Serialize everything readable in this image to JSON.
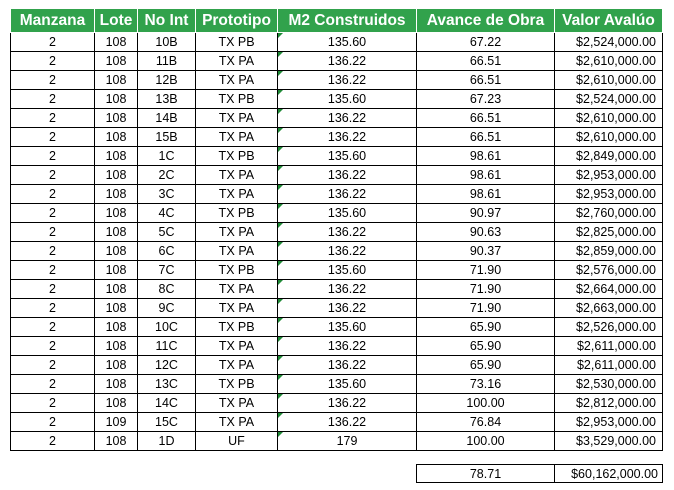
{
  "headers": [
    "Manzana",
    "Lote",
    "No Int",
    "Prototipo",
    "M2 Construidos",
    "Avance de Obra",
    "Valor Avalúo"
  ],
  "rows": [
    [
      "2",
      "108",
      "10B",
      "TX PB",
      "135.60",
      "67.22",
      "$2,524,000.00"
    ],
    [
      "2",
      "108",
      "11B",
      "TX PA",
      "136.22",
      "66.51",
      "$2,610,000.00"
    ],
    [
      "2",
      "108",
      "12B",
      "TX PA",
      "136.22",
      "66.51",
      "$2,610,000.00"
    ],
    [
      "2",
      "108",
      "13B",
      "TX PB",
      "135.60",
      "67.23",
      "$2,524,000.00"
    ],
    [
      "2",
      "108",
      "14B",
      "TX PA",
      "136.22",
      "66.51",
      "$2,610,000.00"
    ],
    [
      "2",
      "108",
      "15B",
      "TX PA",
      "136.22",
      "66.51",
      "$2,610,000.00"
    ],
    [
      "2",
      "108",
      "1C",
      "TX PB",
      "135.60",
      "98.61",
      "$2,849,000.00"
    ],
    [
      "2",
      "108",
      "2C",
      "TX PA",
      "136.22",
      "98.61",
      "$2,953,000.00"
    ],
    [
      "2",
      "108",
      "3C",
      "TX PA",
      "136.22",
      "98.61",
      "$2,953,000.00"
    ],
    [
      "2",
      "108",
      "4C",
      "TX PB",
      "135.60",
      "90.97",
      "$2,760,000.00"
    ],
    [
      "2",
      "108",
      "5C",
      "TX PA",
      "136.22",
      "90.63",
      "$2,825,000.00"
    ],
    [
      "2",
      "108",
      "6C",
      "TX PA",
      "136.22",
      "90.37",
      "$2,859,000.00"
    ],
    [
      "2",
      "108",
      "7C",
      "TX PB",
      "135.60",
      "71.90",
      "$2,576,000.00"
    ],
    [
      "2",
      "108",
      "8C",
      "TX PA",
      "136.22",
      "71.90",
      "$2,664,000.00"
    ],
    [
      "2",
      "108",
      "9C",
      "TX PA",
      "136.22",
      "71.90",
      "$2,663,000.00"
    ],
    [
      "2",
      "108",
      "10C",
      "TX PB",
      "135.60",
      "65.90",
      "$2,526,000.00"
    ],
    [
      "2",
      "108",
      "11C",
      "TX PA",
      "136.22",
      "65.90",
      "$2,611,000.00"
    ],
    [
      "2",
      "108",
      "12C",
      "TX PA",
      "136.22",
      "65.90",
      "$2,611,000.00"
    ],
    [
      "2",
      "108",
      "13C",
      "TX PB",
      "135.60",
      "73.16",
      "$2,530,000.00"
    ],
    [
      "2",
      "108",
      "14C",
      "TX PA",
      "136.22",
      "100.00",
      "$2,812,000.00"
    ],
    [
      "2",
      "109",
      "15C",
      "TX PA",
      "136.22",
      "76.84",
      "$2,953,000.00"
    ],
    [
      "2",
      "108",
      "1D",
      "UF",
      "179",
      "100.00",
      "$3,529,000.00"
    ]
  ],
  "totals": {
    "avance_promedio": "78.71",
    "valor_total": "$60,162,000.00"
  }
}
